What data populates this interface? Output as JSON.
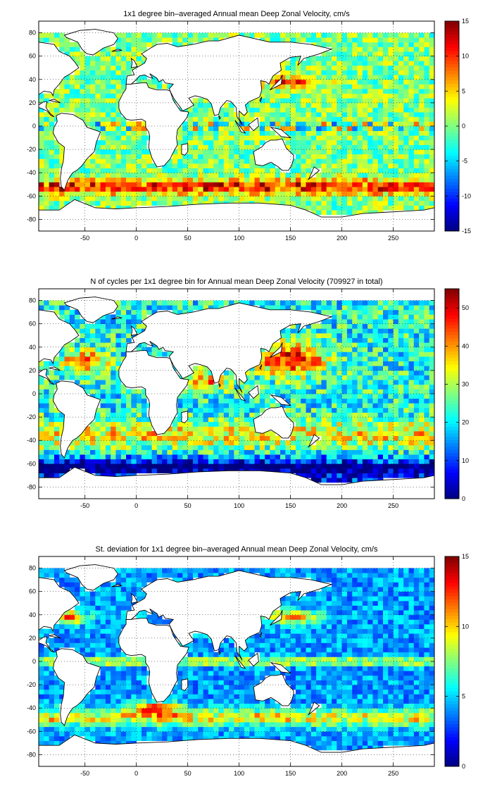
{
  "chart_data": [
    {
      "type": "heatmap",
      "title": "1x1 degree bin–averaged Annual mean Deep Zonal Velocity, cm/s",
      "xlim": [
        -95,
        290
      ],
      "ylim": [
        -90,
        90
      ],
      "xticks": [
        -50,
        0,
        50,
        100,
        150,
        200,
        250
      ],
      "yticks": [
        80,
        60,
        40,
        20,
        0,
        -20,
        -40,
        -60,
        -80
      ],
      "grid": true,
      "colorbar": {
        "range": [
          -15,
          15
        ],
        "ticks": [
          15,
          10,
          5,
          0,
          -5,
          -10,
          -15
        ],
        "colormap": "jet"
      },
      "field": "velocity"
    },
    {
      "type": "heatmap",
      "title": "N of cycles per 1x1 degree bin for Annual mean Deep Zonal Velocity (709927 in total)",
      "xlim": [
        -95,
        290
      ],
      "ylim": [
        -90,
        90
      ],
      "xticks": [
        -50,
        0,
        50,
        100,
        150,
        200,
        250
      ],
      "yticks": [
        80,
        60,
        40,
        20,
        0,
        -20,
        -40,
        -60,
        -80
      ],
      "grid": true,
      "colorbar": {
        "range": [
          0,
          55
        ],
        "ticks": [
          50,
          40,
          30,
          20,
          10,
          0
        ],
        "colormap": "jet"
      },
      "field": "count"
    },
    {
      "type": "heatmap",
      "title": "St. deviation for 1x1 degree bin–averaged Annual mean Deep Zonal Velocity, cm/s",
      "xlim": [
        -95,
        290
      ],
      "ylim": [
        -90,
        90
      ],
      "xticks": [
        -50,
        0,
        50,
        100,
        150,
        200,
        250
      ],
      "yticks": [
        80,
        60,
        40,
        20,
        0,
        -20,
        -40,
        -60,
        -80
      ],
      "grid": true,
      "colorbar": {
        "range": [
          0,
          15
        ],
        "ticks": [
          15,
          10,
          5,
          0
        ],
        "colormap": "jet"
      },
      "field": "stdev"
    }
  ]
}
